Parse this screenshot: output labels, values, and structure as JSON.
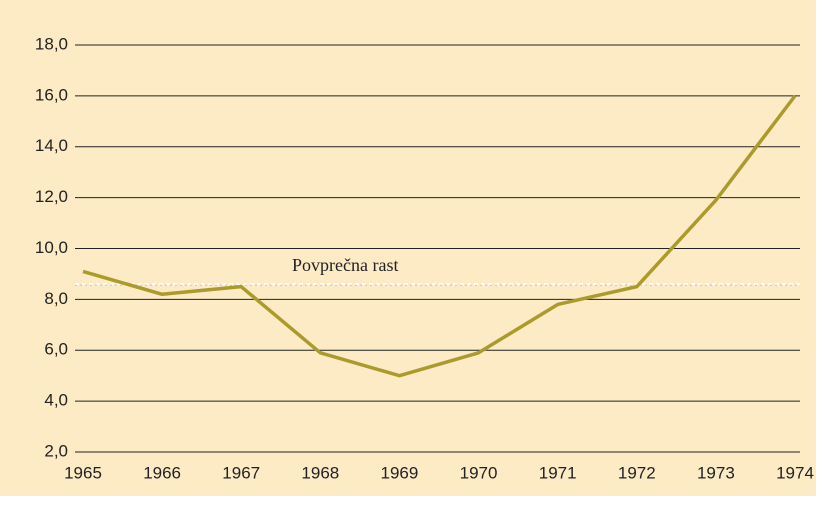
{
  "chart_data": {
    "type": "line",
    "x": [
      1965,
      1966,
      1967,
      1968,
      1969,
      1970,
      1971,
      1972,
      1973,
      1974
    ],
    "series": [
      {
        "color": "#ab9b2c",
        "values": [
          9.1,
          8.2,
          8.5,
          5.9,
          5.0,
          5.9,
          7.8,
          8.5,
          11.9,
          16.0
        ]
      }
    ],
    "xlim": [
      1965,
      1974
    ],
    "xticks": [
      1965,
      1966,
      1967,
      1968,
      1969,
      1970,
      1971,
      1972,
      1973,
      1974
    ],
    "ylim": [
      2,
      18
    ],
    "yticks": [
      {
        "value": 2,
        "label": "2,0"
      },
      {
        "value": 4,
        "label": "4,0"
      },
      {
        "value": 6,
        "label": "6,0"
      },
      {
        "value": 8,
        "label": "8,0"
      },
      {
        "value": 10,
        "label": "10,0"
      },
      {
        "value": 12,
        "label": "12,0"
      },
      {
        "value": 14,
        "label": "14,0"
      },
      {
        "value": 16,
        "label": "16,0"
      },
      {
        "value": 18,
        "label": "18,0"
      }
    ],
    "grid": true,
    "average": {
      "label": "Povprečna rast",
      "value": 8.6
    }
  }
}
